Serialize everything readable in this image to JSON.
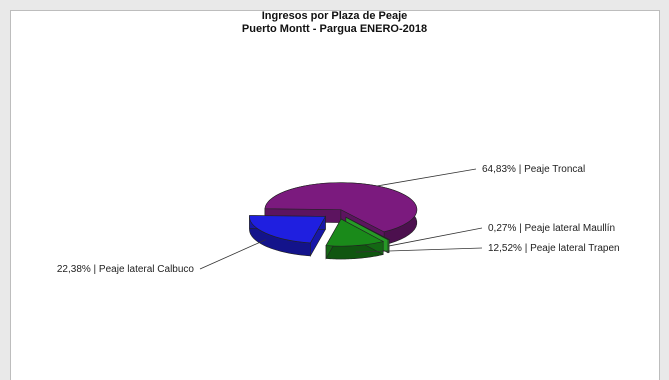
{
  "chart_data": {
    "type": "pie",
    "title": "Ingresos por Plaza de Peaje",
    "subtitle": "Puerto Montt - Pargua ENERO-2018",
    "slices": [
      {
        "label": "64,83% | Peaje Troncal",
        "value": 64.83,
        "color": "#7b1a7e"
      },
      {
        "label": "0,27% | Peaje lateral Maullín",
        "value": 0.27,
        "color": "#33cc33"
      },
      {
        "label": "12,52% | Peaje lateral Trapen",
        "value": 12.52,
        "color": "#1a8a1a"
      },
      {
        "label": "22,38% | Peaje lateral Calbuco",
        "value": 22.38,
        "color": "#1f1fe0"
      }
    ]
  }
}
